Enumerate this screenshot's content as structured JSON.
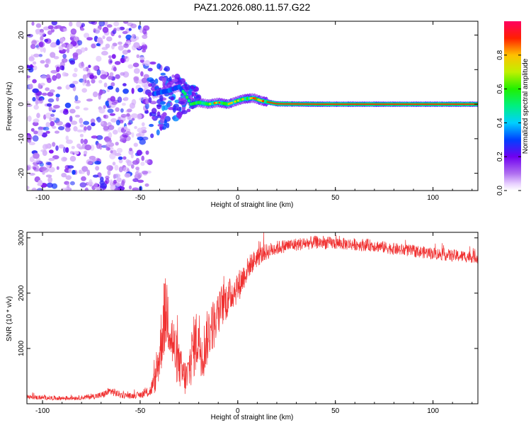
{
  "title": "PAZ1.2026.080.11.57.G22",
  "chart_data": [
    {
      "type": "heatmap",
      "xlabel": "Height of straight line (km)",
      "ylabel": "Frequency (Hz)",
      "xlim": [
        -108,
        123
      ],
      "ylim": [
        -25,
        24
      ],
      "xticks": [
        -100,
        -50,
        0,
        50,
        100
      ],
      "yticks": [
        -20,
        -10,
        0,
        10,
        20
      ],
      "colorbar": {
        "label": "Normalized spectral amplitude",
        "range": [
          0.0,
          1.0
        ],
        "ticks": [
          0.0,
          0.2,
          0.4,
          0.6,
          0.8
        ],
        "tick_labels": [
          "0.0",
          "0.2",
          "0.4",
          "0.6",
          "0.8"
        ]
      },
      "features": {
        "diffuse_noise_region_km": [
          -108,
          -45
        ],
        "transition_region_km": [
          -45,
          -20
        ],
        "ridge_track": {
          "x": [
            -43,
            -35,
            -30,
            -27,
            -24,
            -20,
            -15,
            -10,
            -5,
            0,
            3,
            8,
            12,
            20,
            40,
            80,
            123
          ],
          "y": [
            3,
            4,
            5,
            3,
            0,
            0.5,
            0,
            0.5,
            0,
            1,
            1.5,
            1.8,
            1,
            0.1,
            0,
            0,
            0
          ],
          "peak_amplitude": 0.95
        }
      }
    },
    {
      "type": "line",
      "xlabel": "Height of straight line (km)",
      "ylabel": "SNR (10 * v/v)",
      "xlim": [
        -108,
        123
      ],
      "ylim": [
        0,
        3100
      ],
      "xticks": [
        -100,
        -50,
        0,
        50,
        100
      ],
      "yticks": [
        1000,
        2000,
        3000
      ],
      "color": "#f03030",
      "series": [
        {
          "name": "SNR",
          "x": [
            -108,
            -100,
            -90,
            -80,
            -70,
            -65,
            -60,
            -55,
            -50,
            -45,
            -42,
            -40,
            -38,
            -36,
            -34,
            -32,
            -30,
            -28,
            -26,
            -24,
            -22,
            -20,
            -18,
            -16,
            -14,
            -12,
            -10,
            -8,
            -5,
            -2,
            0,
            3,
            6,
            10,
            15,
            20,
            25,
            30,
            35,
            40,
            50,
            60,
            70,
            80,
            90,
            100,
            110,
            123
          ],
          "values": [
            120,
            110,
            100,
            110,
            150,
            230,
            160,
            140,
            160,
            220,
            450,
            900,
            1500,
            1700,
            1200,
            900,
            700,
            500,
            450,
            800,
            1100,
            1200,
            900,
            1150,
            1400,
            1450,
            1600,
            1800,
            1900,
            2050,
            2100,
            2300,
            2500,
            2650,
            2750,
            2820,
            2860,
            2880,
            2900,
            2920,
            2900,
            2880,
            2860,
            2800,
            2760,
            2720,
            2680,
            2650
          ],
          "noise_amplitude": [
            40,
            40,
            40,
            40,
            60,
            80,
            60,
            50,
            60,
            100,
            250,
            500,
            700,
            700,
            600,
            500,
            400,
            350,
            350,
            500,
            600,
            550,
            500,
            500,
            500,
            450,
            400,
            400,
            350,
            300,
            300,
            250,
            200,
            180,
            150,
            130,
            120,
            120,
            120,
            120,
            110,
            110,
            110,
            110,
            110,
            110,
            110,
            110
          ]
        }
      ]
    }
  ]
}
